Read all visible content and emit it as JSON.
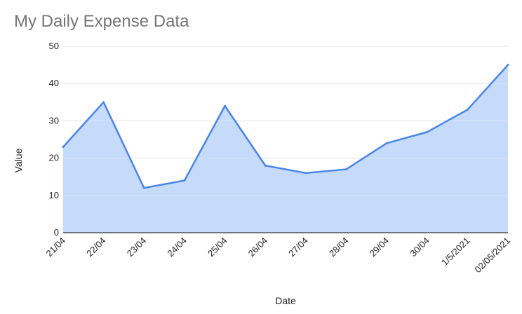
{
  "chart_data": {
    "type": "area",
    "title": "My Daily Expense Data",
    "xlabel": "Date",
    "ylabel": "Value",
    "categories": [
      "21/04",
      "22/04",
      "23/04",
      "24/04",
      "25/04",
      "26/04",
      "27/04",
      "28/04",
      "29/04",
      "30/04",
      "1/5/2021",
      "02/05/2021"
    ],
    "series": [
      {
        "values": [
          23,
          35,
          12,
          14,
          34,
          18,
          16,
          17,
          24,
          27,
          33,
          45
        ]
      }
    ],
    "ylim": [
      0,
      50
    ],
    "yticks": [
      0,
      10,
      20,
      30,
      40,
      50
    ],
    "grid": true,
    "legend": "none",
    "colors": {
      "line": "#4a86e8",
      "fill": "#c6daf9",
      "grid": "#d9d9d9",
      "baseline": "#333333",
      "title": "#757575",
      "text": "#222222"
    }
  }
}
